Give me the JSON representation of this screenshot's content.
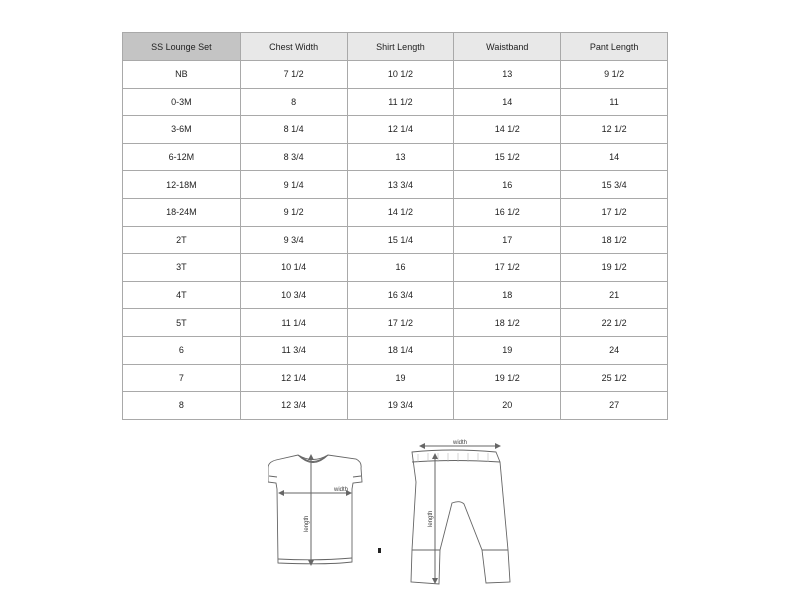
{
  "table": {
    "headers": [
      "SS Lounge Set",
      "Chest Width",
      "Shirt Length",
      "Waistband",
      "Pant Length"
    ],
    "rows": [
      [
        "NB",
        "7 1/2",
        "10 1/2",
        "13",
        "9 1/2"
      ],
      [
        "0-3M",
        "8",
        "11 1/2",
        "14",
        "11"
      ],
      [
        "3-6M",
        "8 1/4",
        "12 1/4",
        "14 1/2",
        "12 1/2"
      ],
      [
        "6-12M",
        "8 3/4",
        "13",
        "15 1/2",
        "14"
      ],
      [
        "12-18M",
        "9 1/4",
        "13 3/4",
        "16",
        "15 3/4"
      ],
      [
        "18-24M",
        "9 1/2",
        "14 1/2",
        "16 1/2",
        "17 1/2"
      ],
      [
        "2T",
        "9 3/4",
        "15 1/4",
        "17",
        "18 1/2"
      ],
      [
        "3T",
        "10 1/4",
        "16",
        "17 1/2",
        "19 1/2"
      ],
      [
        "4T",
        "10 3/4",
        "16 3/4",
        "18",
        "21"
      ],
      [
        "5T",
        "11 1/4",
        "17 1/2",
        "18 1/2",
        "22 1/2"
      ],
      [
        "6",
        "11 3/4",
        "18 1/4",
        "19",
        "24"
      ],
      [
        "7",
        "12 1/4",
        "19",
        "19 1/2",
        "25 1/2"
      ],
      [
        "8",
        "12 3/4",
        "19 3/4",
        "20",
        "27"
      ]
    ]
  },
  "diagram": {
    "shirt_width_label": "width",
    "shirt_length_label": "length",
    "pant_width_label": "width",
    "pant_length_label": "length"
  }
}
